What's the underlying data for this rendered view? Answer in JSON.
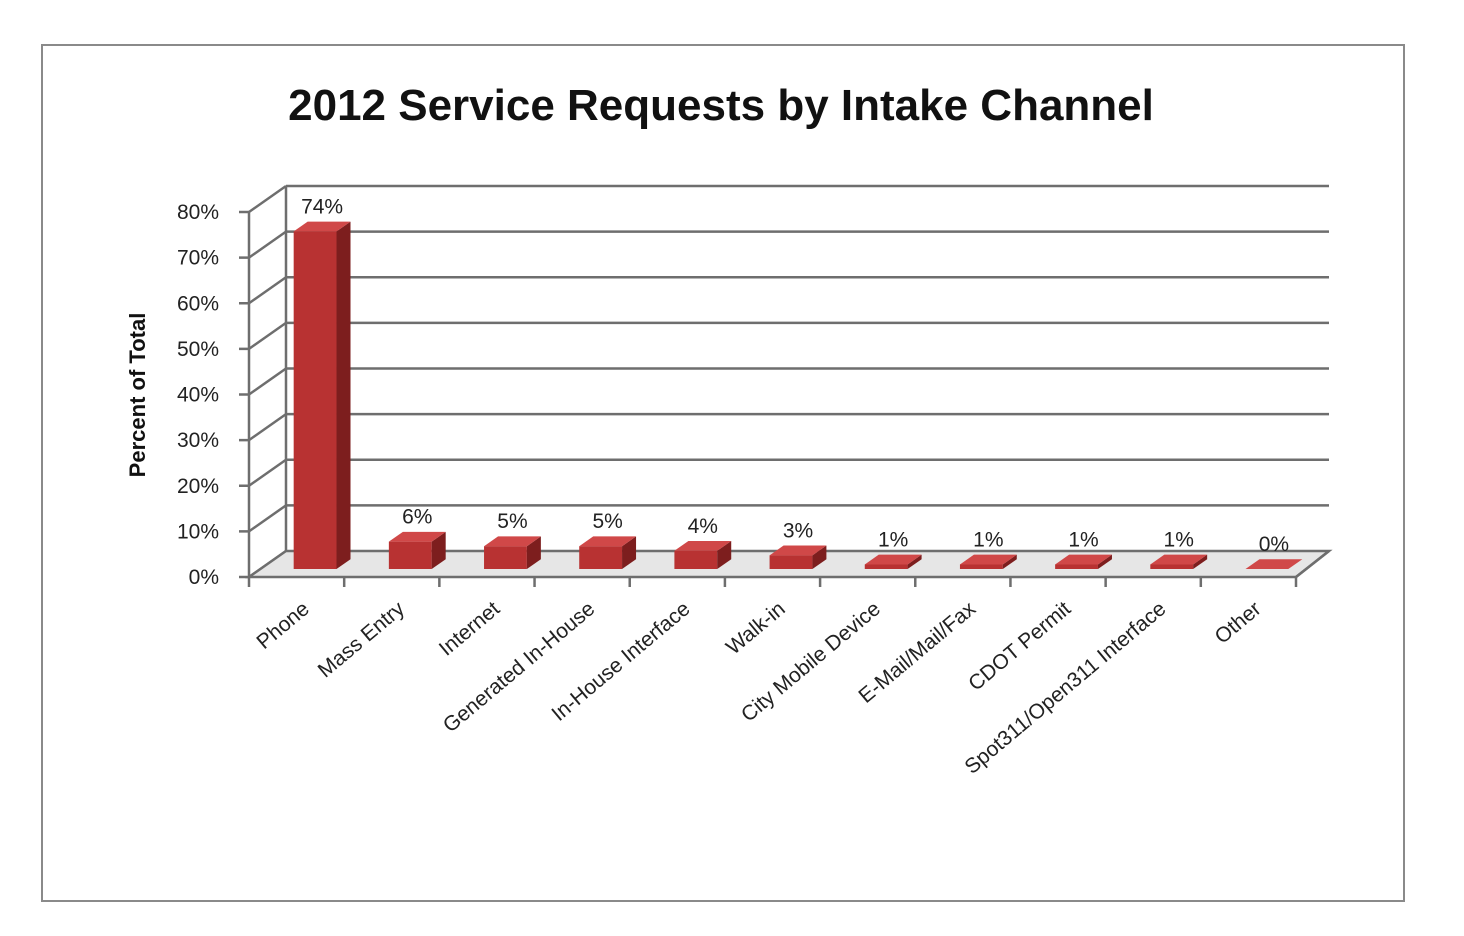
{
  "chart_data": {
    "type": "bar",
    "title": "2012 Service Requests by Intake Channel",
    "ylabel": "Percent of Total",
    "xlabel": "",
    "ylim": [
      0,
      80
    ],
    "ytick_step": 10,
    "ytick_suffix": "%",
    "grid": true,
    "three_d": true,
    "categories": [
      "Phone",
      "Mass Entry",
      "Internet",
      "Generated In-House",
      "In-House Interface",
      "Walk-in",
      "City Mobile Device",
      "E-Mail/Mail/Fax",
      "CDOT Permit",
      "Spot311/Open311 Interface",
      "Other"
    ],
    "values": [
      74,
      6,
      5,
      5,
      4,
      3,
      1,
      1,
      1,
      1,
      0
    ],
    "data_labels": [
      "74%",
      "6%",
      "5%",
      "5%",
      "4%",
      "3%",
      "1%",
      "1%",
      "1%",
      "1%",
      "0%"
    ],
    "colors": {
      "bar_front": "#b83232",
      "bar_side": "#7d1e1e",
      "bar_top": "#d04848",
      "grid": "#6e6e6e",
      "floor": "#e6e6e6"
    }
  }
}
